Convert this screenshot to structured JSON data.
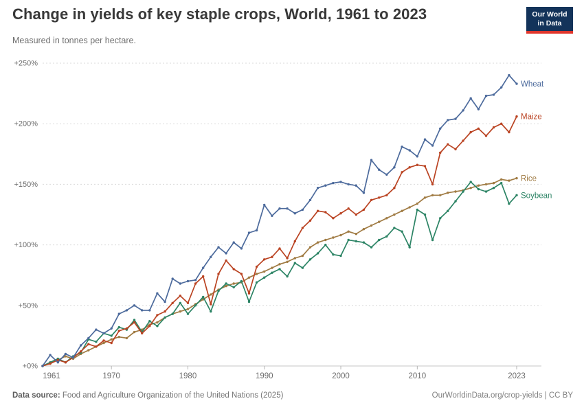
{
  "header": {
    "title": "Change in yields of key staple crops, World, 1961 to 2023",
    "subtitle": "Measured in tonnes per hectare.",
    "logo": {
      "line1": "Our World",
      "line2": "in Data",
      "bg_color": "#13335A",
      "accent_color": "#E0362C"
    }
  },
  "footer": {
    "source_label": "Data source:",
    "source_text": " Food and Agriculture Organization of the United Nations (2025)",
    "credit": "OurWorldinData.org/crop-yields | CC BY"
  },
  "chart_data": {
    "type": "line",
    "title": "Change in yields of key staple crops, World, 1961 to 2023",
    "unit": "% change in tonnes per hectare since 1961",
    "xlim": [
      1961,
      2023
    ],
    "ylim": [
      0,
      250
    ],
    "grid": "horizontal-dashed",
    "legend_position": "end-of-line-labels",
    "xticks": [
      1961,
      1970,
      1980,
      1990,
      2000,
      2010,
      2023
    ],
    "yticks": [
      {
        "value": 0,
        "label": "+0%"
      },
      {
        "value": 50,
        "label": "+50%"
      },
      {
        "value": 100,
        "label": "+100%"
      },
      {
        "value": 150,
        "label": "+150%"
      },
      {
        "value": 200,
        "label": "+200%"
      },
      {
        "value": 250,
        "label": "+250%"
      }
    ],
    "x": [
      1961,
      1962,
      1963,
      1964,
      1965,
      1966,
      1967,
      1968,
      1969,
      1970,
      1971,
      1972,
      1973,
      1974,
      1975,
      1976,
      1977,
      1978,
      1979,
      1980,
      1981,
      1982,
      1983,
      1984,
      1985,
      1986,
      1987,
      1988,
      1989,
      1990,
      1991,
      1992,
      1993,
      1994,
      1995,
      1996,
      1997,
      1998,
      1999,
      2000,
      2001,
      2002,
      2003,
      2004,
      2005,
      2006,
      2007,
      2008,
      2009,
      2010,
      2011,
      2012,
      2013,
      2014,
      2015,
      2016,
      2017,
      2018,
      2019,
      2020,
      2021,
      2022,
      2023
    ],
    "series": [
      {
        "name": "Wheat",
        "color": "#4C6A9C",
        "values": [
          0,
          9,
          3,
          10,
          7,
          17,
          23,
          30,
          27,
          31,
          43,
          46,
          50,
          46,
          46,
          60,
          53,
          72,
          68,
          70,
          71,
          81,
          90,
          98,
          93,
          102,
          97,
          110,
          112,
          133,
          124,
          130,
          130,
          126,
          129,
          137,
          147,
          149,
          151,
          152,
          150,
          149,
          143,
          170,
          162,
          158,
          164,
          181,
          178,
          173,
          187,
          182,
          196,
          203,
          204,
          211,
          221,
          212,
          223,
          224,
          230,
          240,
          233
        ]
      },
      {
        "name": "Maize",
        "color": "#BA4322",
        "values": [
          0,
          2,
          5,
          3,
          7,
          12,
          18,
          16,
          21,
          19,
          29,
          31,
          36,
          27,
          33,
          42,
          45,
          52,
          58,
          52,
          68,
          74,
          51,
          76,
          87,
          80,
          76,
          60,
          82,
          88,
          90,
          97,
          89,
          103,
          114,
          120,
          128,
          127,
          122,
          126,
          130,
          125,
          129,
          137,
          139,
          141,
          147,
          160,
          164,
          166,
          165,
          150,
          176,
          183,
          179,
          186,
          193,
          196,
          190,
          197,
          200,
          193,
          206
        ]
      },
      {
        "name": "Rice",
        "color": "#A07B43",
        "values": [
          0,
          2,
          5,
          8,
          6,
          10,
          13,
          16,
          19,
          22,
          24,
          23,
          28,
          30,
          34,
          36,
          40,
          43,
          45,
          47,
          51,
          55,
          59,
          63,
          66,
          68,
          69,
          73,
          76,
          78,
          81,
          84,
          86,
          89,
          91,
          98,
          102,
          104,
          106,
          108,
          111,
          109,
          113,
          116,
          119,
          122,
          125,
          128,
          131,
          134,
          139,
          141,
          141,
          143,
          144,
          145,
          147,
          149,
          150,
          151,
          154,
          153,
          155
        ]
      },
      {
        "name": "Soybean",
        "color": "#2C8465",
        "values": [
          0,
          3,
          6,
          3,
          8,
          11,
          22,
          20,
          27,
          25,
          32,
          30,
          38,
          28,
          37,
          33,
          40,
          43,
          52,
          43,
          50,
          57,
          45,
          62,
          68,
          65,
          70,
          53,
          69,
          73,
          77,
          80,
          74,
          85,
          81,
          88,
          93,
          100,
          92,
          91,
          104,
          103,
          102,
          98,
          104,
          107,
          114,
          111,
          98,
          129,
          125,
          104,
          122,
          128,
          136,
          144,
          152,
          146,
          144,
          147,
          151,
          134,
          141
        ]
      }
    ]
  }
}
